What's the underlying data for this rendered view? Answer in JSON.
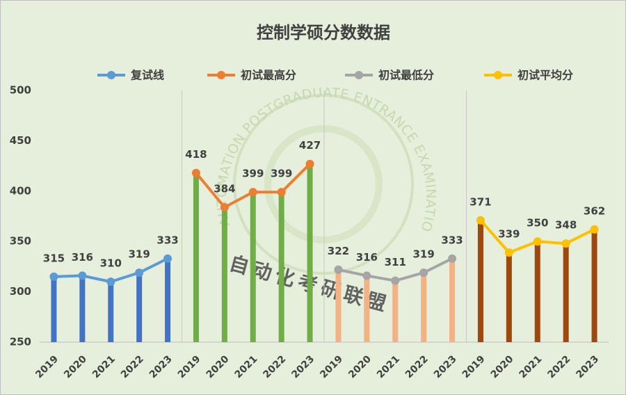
{
  "chart_data": {
    "type": "line-bar",
    "title": "控制学硕分数数据",
    "watermark": {
      "ring": "AUTOMATION POSTGRADUATE ENTRANCE EXAMINATION ALLIANCE",
      "name": "自动化考研联盟"
    },
    "categories": [
      "2019",
      "2020",
      "2021",
      "2022",
      "2023",
      "2019",
      "2020",
      "2021",
      "2022",
      "2023",
      "2019",
      "2020",
      "2021",
      "2022",
      "2023",
      "2019",
      "2020",
      "2021",
      "2022",
      "2023"
    ],
    "series": [
      {
        "name": "复试线",
        "color": "#5b9bd5",
        "bar_color": "#4472c4",
        "values": [
          315,
          316,
          310,
          319,
          333,
          null,
          null,
          null,
          null,
          null,
          null,
          null,
          null,
          null,
          null,
          null,
          null,
          null,
          null,
          null
        ]
      },
      {
        "name": "初试最高分",
        "color": "#ed7d31",
        "bar_color": "#70ad47",
        "values": [
          null,
          null,
          null,
          null,
          null,
          418,
          384,
          399,
          399,
          427,
          null,
          null,
          null,
          null,
          null,
          null,
          null,
          null,
          null,
          null
        ]
      },
      {
        "name": "初试最低分",
        "color": "#a5a5a5",
        "bar_color": "#f4b183",
        "values": [
          null,
          null,
          null,
          null,
          null,
          null,
          null,
          null,
          null,
          null,
          322,
          316,
          311,
          319,
          333,
          null,
          null,
          null,
          null,
          null
        ]
      },
      {
        "name": "初试平均分",
        "color": "#ffc000",
        "bar_color": "#9e480e",
        "values": [
          null,
          null,
          null,
          null,
          null,
          null,
          null,
          null,
          null,
          null,
          null,
          null,
          null,
          null,
          null,
          371,
          339,
          350,
          348,
          362
        ]
      }
    ],
    "ylim": [
      250,
      500
    ],
    "yticks": [
      250,
      300,
      350,
      400,
      450,
      500
    ],
    "legend": "top"
  }
}
